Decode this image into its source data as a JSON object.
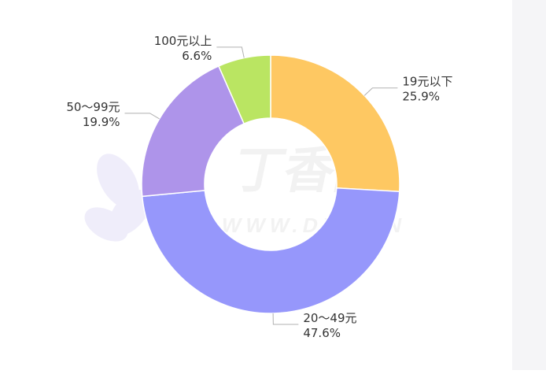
{
  "chart_data": {
    "type": "pie",
    "variant": "donut",
    "start_angle_deg": 0,
    "direction": "clockwise",
    "title": "",
    "legend": "none",
    "slices": [
      {
        "category": "19元以下",
        "percent_label": "25.9%",
        "value": 25.9,
        "color": "#fec862"
      },
      {
        "category": "20～49元",
        "percent_label": "47.6%",
        "value": 47.6,
        "color": "#9697fb"
      },
      {
        "category": "50～99元",
        "percent_label": "19.9%",
        "value": 19.9,
        "color": "#ae94ea"
      },
      {
        "category": "100元以上",
        "percent_label": "6.6%",
        "value": 6.6,
        "color": "#bae562"
      }
    ]
  },
  "watermark": {
    "text_main": "丁香园",
    "text_sub": "WWW.DXY.CN"
  }
}
